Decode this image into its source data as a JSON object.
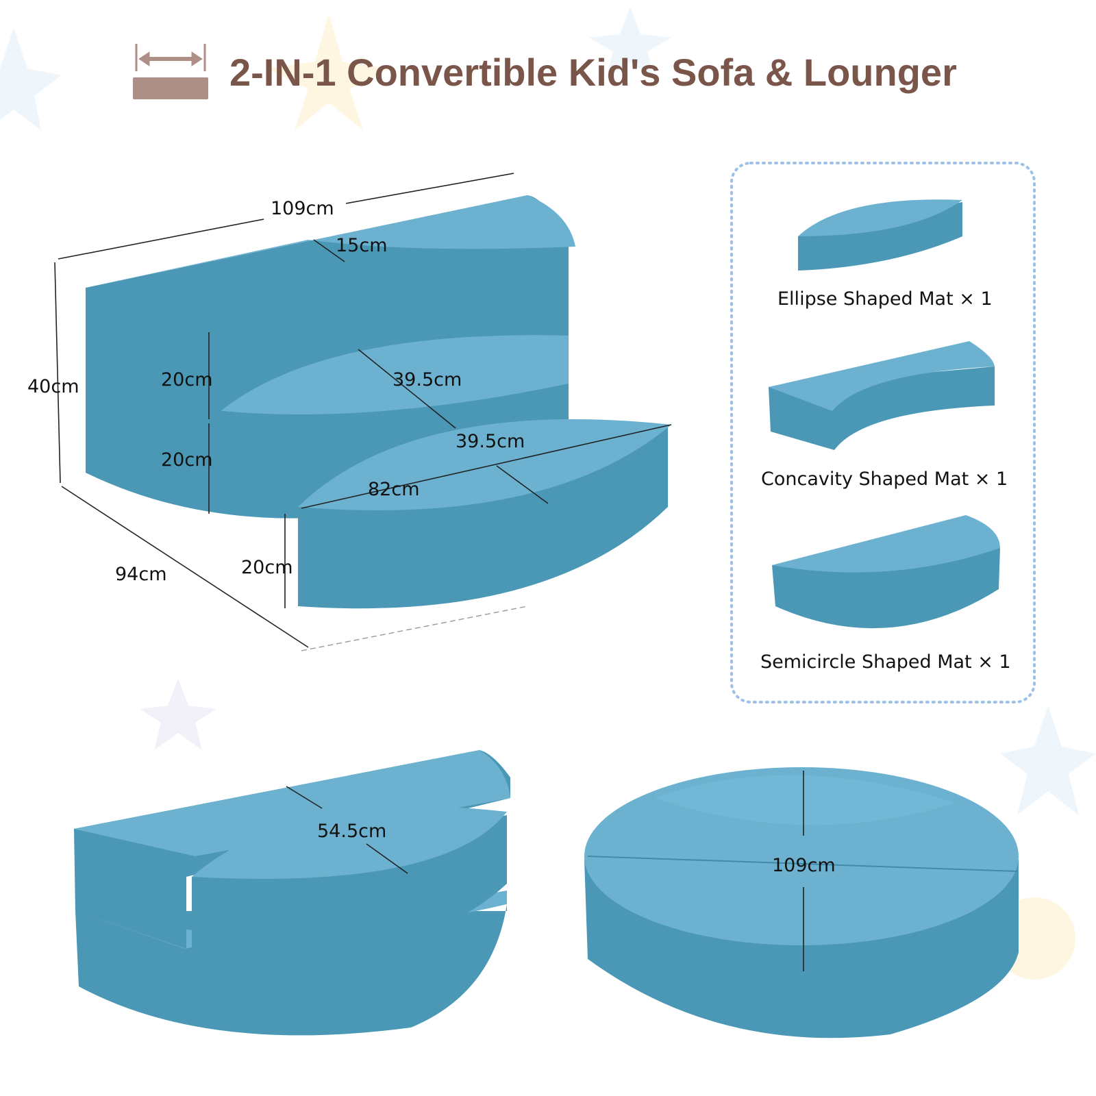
{
  "title": "2-IN-1 Convertible Kid's Sofa & Lounger",
  "title_icon": "ruler-width-icon",
  "colors": {
    "title": "#7a5549",
    "foam_top": "#6cb2d0",
    "foam_side": "#4a98b6",
    "panel_border": "#9cc0e6"
  },
  "sofa_dimensions": {
    "width": "109cm",
    "backrest_thickness": "15cm",
    "height": "40cm",
    "upper_height": "20cm",
    "lower_height": "20cm",
    "seat_depth": "39.5cm",
    "ellipse_depth": "39.5cm",
    "ellipse_length": "82cm",
    "ellipse_height": "20cm",
    "depth": "94cm"
  },
  "parts": [
    {
      "label": "Ellipse Shaped Mat × 1"
    },
    {
      "label": "Concavity Shaped Mat × 1"
    },
    {
      "label": "Semicircle Shaped Mat × 1"
    }
  ],
  "chair_mode": {
    "seat_depth": "54.5cm"
  },
  "lounger_mode": {
    "diameter": "109cm"
  }
}
